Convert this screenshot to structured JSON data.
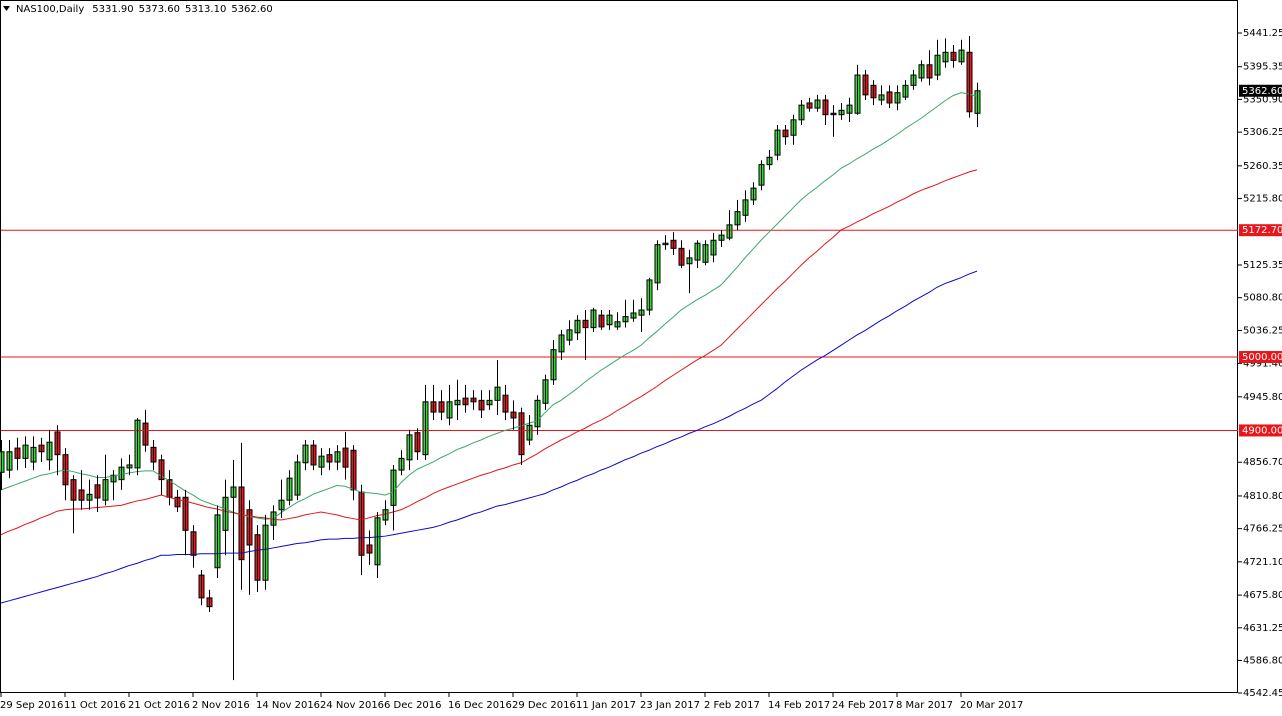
{
  "chart_data": {
    "type": "candlestick",
    "title": "NAS100,Daily",
    "header_values": [
      "5331.90",
      "5373.60",
      "5313.10",
      "5362.60"
    ],
    "categories": [
      "29 Sep 2016",
      null,
      null,
      null,
      null,
      null,
      null,
      null,
      "11 Oct 2016",
      null,
      null,
      null,
      null,
      null,
      null,
      null,
      "21 Oct 2016",
      null,
      null,
      null,
      null,
      null,
      null,
      null,
      "2 Nov 2016",
      null,
      null,
      null,
      null,
      null,
      null,
      null,
      "14 Nov 2016",
      null,
      null,
      null,
      null,
      null,
      null,
      null,
      "24 Nov 2016",
      null,
      null,
      null,
      null,
      null,
      null,
      null,
      "6 Dec 2016",
      null,
      null,
      null,
      null,
      null,
      null,
      null,
      "16 Dec 2016",
      null,
      null,
      null,
      null,
      null,
      null,
      null,
      "29 Dec 2016",
      null,
      null,
      null,
      null,
      null,
      null,
      null,
      "11 Jan 2017",
      null,
      null,
      null,
      null,
      null,
      null,
      null,
      "23 Jan 2017",
      null,
      null,
      null,
      null,
      null,
      null,
      null,
      "2 Feb 2017",
      null,
      null,
      null,
      null,
      null,
      null,
      null,
      "14 Feb 2017",
      null,
      null,
      null,
      null,
      null,
      null,
      null,
      "24 Feb 2017",
      null,
      null,
      null,
      null,
      null,
      null,
      null,
      "8 Mar 2017",
      null,
      null,
      null,
      null,
      null,
      null,
      null,
      "20 Mar 2017",
      null,
      null
    ],
    "open": [
      4843,
      4846,
      4876,
      4862,
      4857,
      4880,
      4860,
      4898,
      4867,
      4833,
      4819,
      4805,
      4826,
      4805,
      4830,
      4833,
      4849,
      4849,
      4910,
      4877,
      4860,
      4833,
      4809,
      4809,
      4762,
      4703,
      4672,
      4713,
      4764,
      4809,
      4823,
      4792,
      4758,
      4696,
      4771,
      4792,
      4805,
      4812,
      4856,
      4880,
      4850,
      4867,
      4857,
      4876,
      4873,
      4816,
      4744,
      4717,
      4778,
      4798,
      4846,
      4860,
      4897,
      4867,
      4939,
      4939,
      4917,
      4935,
      4944,
      4944,
      4941,
      4935,
      4941,
      4948,
      4925,
      4924,
      4887,
      4905,
      4937,
      4969,
      5007,
      5023,
      5033,
      5050,
      5040,
      5057,
      5044,
      5041,
      5048,
      5053,
      5057,
      5064,
      5101,
      5153,
      5159,
      5148,
      5127,
      5132,
      5129,
      5139,
      5159,
      5162,
      5180,
      5193,
      5214,
      5234,
      5262,
      5275,
      5309,
      5302,
      5323,
      5346,
      5339,
      5350,
      5332,
      5330,
      5332,
      5332,
      5384,
      5370,
      5350,
      5361,
      5346,
      5354,
      5370,
      5380,
      5398,
      5384,
      5402,
      5415,
      5402,
      5415,
      5331.9
    ],
    "high": [
      4887,
      4887,
      4890,
      4892,
      4892,
      4890,
      4901,
      4907,
      4876,
      4839,
      4846,
      4833,
      4839,
      4867,
      4846,
      4862,
      4867,
      4917,
      4928,
      4887,
      4867,
      4846,
      4819,
      4819,
      4771,
      4710,
      4683,
      4798,
      4833,
      4860,
      4883,
      4805,
      4771,
      4785,
      4798,
      4833,
      4846,
      4867,
      4887,
      4887,
      4876,
      4876,
      4880,
      4898,
      4880,
      4826,
      4764,
      4789,
      4805,
      4853,
      4873,
      4901,
      4903,
      4962,
      4962,
      4955,
      4962,
      4969,
      4962,
      4955,
      4955,
      4955,
      4996,
      4962,
      4941,
      4931,
      4921,
      4948,
      4976,
      5023,
      5037,
      5050,
      5057,
      5064,
      5067,
      5064,
      5064,
      5061,
      5078,
      5078,
      5080,
      5108,
      5159,
      5166,
      5170,
      5159,
      5146,
      5159,
      5159,
      5169,
      5173,
      5200,
      5214,
      5227,
      5238,
      5268,
      5282,
      5316,
      5316,
      5330,
      5350,
      5353,
      5357,
      5357,
      5343,
      5346,
      5353,
      5398,
      5391,
      5377,
      5370,
      5370,
      5370,
      5377,
      5391,
      5404,
      5418,
      5432,
      5434,
      5425,
      5432,
      5437,
      5373.6
    ],
    "low": [
      4819,
      4835,
      4846,
      4849,
      4846,
      4857,
      4846,
      4839,
      4805,
      4760,
      4792,
      4792,
      4789,
      4798,
      4805,
      4819,
      4839,
      4839,
      4871,
      4846,
      4812,
      4798,
      4789,
      4730,
      4713,
      4662,
      4653,
      4699,
      4730,
      4560,
      4683,
      4676,
      4680,
      4683,
      4751,
      4781,
      4798,
      4805,
      4846,
      4846,
      4839,
      4846,
      4846,
      4833,
      4805,
      4703,
      4717,
      4699,
      4771,
      4764,
      4839,
      4846,
      4860,
      4860,
      4914,
      4914,
      4907,
      4914,
      4924,
      4928,
      4917,
      4928,
      4921,
      4914,
      4901,
      4853,
      4880,
      4894,
      4928,
      4962,
      4996,
      5016,
      5023,
      4996,
      5034,
      5037,
      5037,
      5037,
      5040,
      5048,
      5034,
      5057,
      5091,
      5146,
      5139,
      5121,
      5087,
      5121,
      5125,
      5129,
      5150,
      5159,
      5173,
      5184,
      5207,
      5227,
      5255,
      5268,
      5289,
      5289,
      5316,
      5334,
      5334,
      5316,
      5300,
      5323,
      5320,
      5330,
      5350,
      5343,
      5343,
      5339,
      5336,
      5350,
      5364,
      5375,
      5370,
      5377,
      5394,
      5394,
      5398,
      5326,
      5313.1
    ],
    "close": [
      4871,
      4871,
      4862,
      4880,
      4877,
      4871,
      4884,
      4867,
      4826,
      4805,
      4805,
      4813,
      4808,
      4833,
      4839,
      4850,
      4853,
      4914,
      4880,
      4857,
      4833,
      4809,
      4796,
      4764,
      4730,
      4672,
      4660,
      4785,
      4809,
      4823,
      4724,
      4744,
      4696,
      4771,
      4789,
      4805,
      4835,
      4857,
      4880,
      4853,
      4865,
      4857,
      4871,
      4850,
      4819,
      4730,
      4733,
      4781,
      4792,
      4846,
      4862,
      4894,
      4871,
      4939,
      4925,
      4925,
      4939,
      4941,
      4935,
      4939,
      4928,
      4941,
      4959,
      4925,
      4917,
      4867,
      4907,
      4941,
      4969,
      5010,
      5030,
      5037,
      5050,
      5040,
      5064,
      5041,
      5057,
      5048,
      5055,
      5060,
      5064,
      5105,
      5153,
      5155,
      5148,
      5125,
      5135,
      5155,
      5153,
      5159,
      5166,
      5180,
      5198,
      5214,
      5230,
      5262,
      5272,
      5309,
      5300,
      5323,
      5343,
      5339,
      5350,
      5330,
      5330,
      5336,
      5343,
      5384,
      5357,
      5353,
      5357,
      5346,
      5360,
      5370,
      5384,
      5398,
      5380,
      5411,
      5415,
      5404,
      5418,
      5334,
      5362.6
    ],
    "up_color": "#33dd33",
    "down_color": "#e8161b",
    "lines": [
      {
        "color": "#3aa86a",
        "values": [
          4819,
          4823,
          4827,
          4831,
          4835,
          4839,
          4841,
          4844,
          4846,
          4844,
          4841,
          4839,
          4836,
          4836,
          4838,
          4840,
          4842,
          4844,
          4845,
          4845,
          4838,
          4832,
          4825,
          4818,
          4812,
          4805,
          4801,
          4797,
          4793,
          4789,
          4785,
          4783,
          4781,
          4779,
          4780,
          4788,
          4795,
          4802,
          4807,
          4813,
          4817,
          4821,
          4825,
          4824,
          4820,
          4816,
          4815,
          4814,
          4812,
          4816,
          4829,
          4839,
          4847,
          4852,
          4857,
          4863,
          4868,
          4874,
          4878,
          4883,
          4887,
          4892,
          4896,
          4900,
          4903,
          4906,
          4910,
          4913,
          4924,
          4935,
          4941,
          4949,
          4957,
          4966,
          4974,
          4982,
          4989,
          4996,
          5003,
          5009,
          5016,
          5026,
          5035,
          5045,
          5054,
          5064,
          5071,
          5078,
          5084,
          5091,
          5098,
          5110,
          5122,
          5135,
          5147,
          5159,
          5170,
          5181,
          5192,
          5203,
          5214,
          5223,
          5231,
          5240,
          5248,
          5257,
          5263,
          5270,
          5276,
          5283,
          5289,
          5296,
          5303,
          5311,
          5318,
          5325,
          5333,
          5341,
          5349,
          5356,
          5360,
          5358,
          5355
        ]
      },
      {
        "color": "#e0161b",
        "values": [
          4758,
          4763,
          4767,
          4772,
          4776,
          4781,
          4785,
          4790,
          4792,
          4793,
          4793,
          4794,
          4795,
          4796,
          4797,
          4798,
          4801,
          4804,
          4806,
          4809,
          4812,
          4809,
          4806,
          4804,
          4801,
          4798,
          4795,
          4793,
          4790,
          4788,
          4785,
          4784,
          4782,
          4781,
          4779,
          4778,
          4780,
          4782,
          4785,
          4787,
          4789,
          4787,
          4785,
          4782,
          4780,
          4778,
          4781,
          4784,
          4786,
          4789,
          4792,
          4797,
          4803,
          4808,
          4814,
          4819,
          4823,
          4827,
          4831,
          4835,
          4839,
          4842,
          4846,
          4849,
          4853,
          4856,
          4862,
          4868,
          4875,
          4881,
          4887,
          4892,
          4898,
          4903,
          4909,
          4914,
          4920,
          4927,
          4933,
          4940,
          4946,
          4953,
          4960,
          4968,
          4975,
          4982,
          4989,
          4996,
          5002,
          5009,
          5016,
          5027,
          5038,
          5049,
          5060,
          5071,
          5082,
          5093,
          5103,
          5114,
          5125,
          5135,
          5144,
          5154,
          5163,
          5173,
          5178,
          5184,
          5189,
          5195,
          5200,
          5205,
          5211,
          5216,
          5222,
          5227,
          5231,
          5235,
          5240,
          5244,
          5248,
          5252,
          5255
        ]
      },
      {
        "color": "#0a0ac8",
        "values": [
          4665,
          4668,
          4671,
          4674,
          4677,
          4680,
          4683,
          4686,
          4689,
          4692,
          4695,
          4698,
          4701,
          4705,
          4708,
          4712,
          4716,
          4719,
          4723,
          4726,
          4730,
          4730,
          4731,
          4731,
          4731,
          4732,
          4732,
          4732,
          4733,
          4733,
          4733,
          4735,
          4737,
          4738,
          4740,
          4742,
          4744,
          4746,
          4747,
          4749,
          4751,
          4752,
          4752,
          4753,
          4753,
          4754,
          4754,
          4755,
          4756,
          4758,
          4760,
          4762,
          4764,
          4766,
          4768,
          4771,
          4775,
          4778,
          4782,
          4786,
          4789,
          4793,
          4797,
          4799,
          4802,
          4805,
          4808,
          4811,
          4814,
          4819,
          4823,
          4828,
          4832,
          4837,
          4841,
          4846,
          4850,
          4855,
          4860,
          4864,
          4869,
          4873,
          4878,
          4882,
          4887,
          4891,
          4896,
          4900,
          4905,
          4909,
          4914,
          4919,
          4925,
          4930,
          4936,
          4941,
          4949,
          4957,
          4966,
          4974,
          4982,
          4989,
          4996,
          5002,
          5009,
          5016,
          5023,
          5030,
          5036,
          5043,
          5050,
          5056,
          5063,
          5069,
          5076,
          5082,
          5088,
          5095,
          5100,
          5104,
          5108,
          5113,
          5117
        ]
      }
    ],
    "hlines": [
      {
        "value": 5172.7,
        "label": "5172.70"
      },
      {
        "value": 5000,
        "label": "5000.00"
      },
      {
        "value": 4900,
        "label": "4900.00"
      }
    ],
    "hline_color": "#e8161b",
    "last_price": {
      "value": 5362.6,
      "label": "5362.60"
    },
    "ylim": [
      4542.45,
      5486.2
    ],
    "yticks": [
      4542.45,
      {
        "value": 4586.8,
        "label": "4586.80"
      },
      4631.25,
      {
        "value": 4675.8,
        "label": "4675.80"
      },
      {
        "value": 4721.1,
        "label": "4721.10"
      },
      4766.25,
      {
        "value": 4810.8,
        "label": "4810.80"
      },
      {
        "value": 4856.7,
        "label": "4856.70"
      },
      {
        "value": 4945.8,
        "label": "4945.80"
      },
      {
        "value": 4991.4,
        "label": "4991.40"
      },
      5036.25,
      {
        "value": 5080.8,
        "label": "5080.80"
      },
      5125.35,
      {
        "value": 5215.8,
        "label": "5215.80"
      },
      5260.35,
      5306.25,
      {
        "value": 5350.9,
        "label": "5350.90"
      },
      5395.35,
      5441.25
    ],
    "grid": false
  }
}
